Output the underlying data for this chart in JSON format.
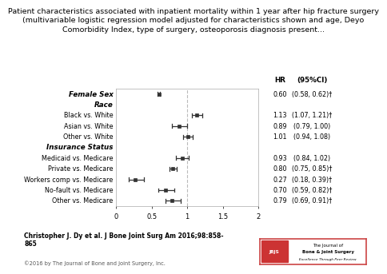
{
  "title_line1": "Patient characteristics associated with inpatient mortality within 1 year after hip fracture surgery",
  "title_line2": "(multivariable logistic regression model adjusted for characteristics shown and age, Deyo",
  "title_line3": "Comorbidity Index, type of surgery, osteoporosis diagnosis present...",
  "title_fontsize": 6.8,
  "xlim": [
    0.0,
    2.0
  ],
  "xticks": [
    0.0,
    0.5,
    1.0,
    1.5,
    2.0
  ],
  "reference_line": 1.0,
  "rows": [
    {
      "label": "Female Sex",
      "is_header": true,
      "hr": 0.6,
      "ci_lo": 0.58,
      "ci_hi": 0.62,
      "hr_str": "0.60",
      "ci_str": "(0.58, 0.62)†"
    },
    {
      "label": "Race",
      "is_header": true,
      "hr": null,
      "ci_lo": null,
      "ci_hi": null,
      "hr_str": "",
      "ci_str": ""
    },
    {
      "label": "Black vs. White",
      "is_header": false,
      "hr": 1.13,
      "ci_lo": 1.07,
      "ci_hi": 1.21,
      "hr_str": "1.13",
      "ci_str": "(1.07, 1.21)†"
    },
    {
      "label": "Asian vs. White",
      "is_header": false,
      "hr": 0.89,
      "ci_lo": 0.79,
      "ci_hi": 1.0,
      "hr_str": "0.89",
      "ci_str": "(0.79, 1.00)"
    },
    {
      "label": "Other vs. White",
      "is_header": false,
      "hr": 1.01,
      "ci_lo": 0.94,
      "ci_hi": 1.08,
      "hr_str": "1.01",
      "ci_str": "(0.94, 1.08)"
    },
    {
      "label": "Insurance Status",
      "is_header": true,
      "hr": null,
      "ci_lo": null,
      "ci_hi": null,
      "hr_str": "",
      "ci_str": ""
    },
    {
      "label": "Medicaid vs. Medicare",
      "is_header": false,
      "hr": 0.93,
      "ci_lo": 0.84,
      "ci_hi": 1.02,
      "hr_str": "0.93",
      "ci_str": "(0.84, 1.02)"
    },
    {
      "label": "Private vs. Medicare",
      "is_header": false,
      "hr": 0.8,
      "ci_lo": 0.75,
      "ci_hi": 0.85,
      "hr_str": "0.80",
      "ci_str": "(0.75, 0.85)†"
    },
    {
      "label": "Workers comp vs. Medicare",
      "is_header": false,
      "hr": 0.27,
      "ci_lo": 0.18,
      "ci_hi": 0.39,
      "hr_str": "0.27",
      "ci_str": "(0.18, 0.39)†"
    },
    {
      "label": "No-fault vs. Medicare",
      "is_header": false,
      "hr": 0.7,
      "ci_lo": 0.59,
      "ci_hi": 0.82,
      "hr_str": "0.70",
      "ci_str": "(0.59, 0.82)†"
    },
    {
      "label": "Other vs. Medicare",
      "is_header": false,
      "hr": 0.79,
      "ci_lo": 0.69,
      "ci_hi": 0.91,
      "hr_str": "0.79",
      "ci_str": "(0.69, 0.91)†"
    }
  ],
  "citation": "Christopher J. Dy et al. J Bone Joint Surg Am 2016;98:858-\n865",
  "copyright": "©2016 by The Journal of Bone and Joint Surgery, Inc.",
  "bg_color": "#ffffff",
  "marker_color": "#333333",
  "ci_color": "#333333",
  "ref_line_color": "#bbbbbb"
}
